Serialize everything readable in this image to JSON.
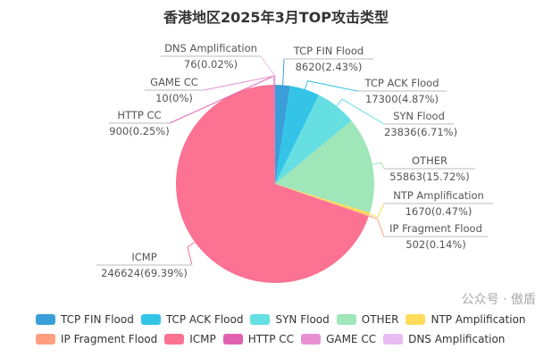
{
  "chart_data": {
    "type": "pie",
    "title": "香港地区2025年3月TOP攻击类型",
    "slices": [
      {
        "name": "TCP FIN Flood",
        "value": 8620,
        "pct": "2.43%",
        "color": "#3a9fd8"
      },
      {
        "name": "TCP ACK Flood",
        "value": 17300,
        "pct": "4.87%",
        "color": "#33c4e8"
      },
      {
        "name": "SYN Flood",
        "value": 23836,
        "pct": "6.71%",
        "color": "#66dfe3"
      },
      {
        "name": "OTHER",
        "value": 55863,
        "pct": "15.72%",
        "color": "#9fe6b8"
      },
      {
        "name": "NTP Amplification",
        "value": 1670,
        "pct": "0.47%",
        "color": "#ffdb5c"
      },
      {
        "name": "IP Fragment Flood",
        "value": 502,
        "pct": "0.14%",
        "color": "#ff9f7f"
      },
      {
        "name": "ICMP",
        "value": 246624,
        "pct": "69.39%",
        "color": "#fb7293"
      },
      {
        "name": "HTTP CC",
        "value": 900,
        "pct": "0.25%",
        "color": "#e062ae"
      },
      {
        "name": "GAME CC",
        "value": 10,
        "pct": "0%",
        "color": "#e690d1"
      },
      {
        "name": "DNS Amplification",
        "value": 76,
        "pct": "0.02%",
        "color": "#e7bcf3"
      }
    ],
    "legend_position": "bottom"
  },
  "watermark": "公众号 · 傲盾"
}
